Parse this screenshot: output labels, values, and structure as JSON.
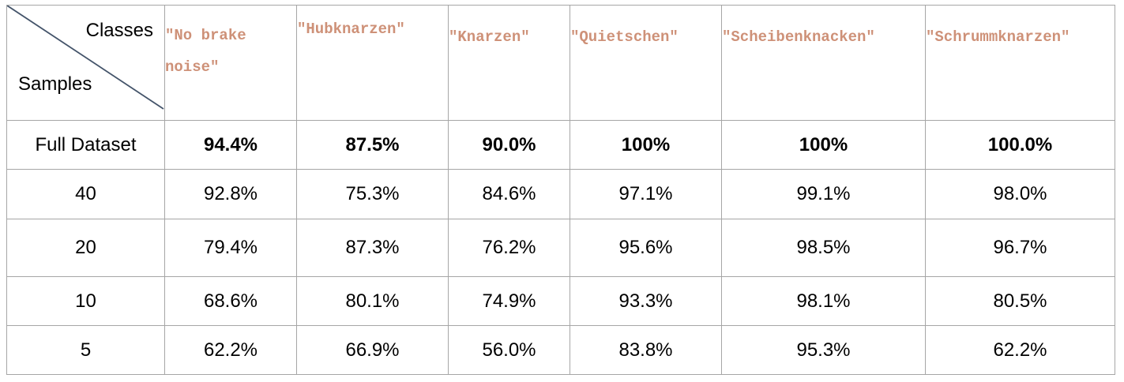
{
  "table": {
    "corner": {
      "top_label": "Classes",
      "bottom_label": "Samples"
    },
    "columns": [
      "\"No brake noise\"",
      "\"Hubknarzen\"",
      "\"Knarzen\"",
      "\"Quietschen\"",
      "\"Scheibenknacken\"",
      "\"Schrummknarzen\""
    ],
    "column_lines": [
      [
        "\"No brake",
        "noise\""
      ],
      [
        "\"Hubknarzen\""
      ],
      [
        "\"Knarzen\""
      ],
      [
        "\"Quietschen\""
      ],
      [
        "\"Scheibenknacken\""
      ],
      [
        "\"Schrummknarzen\""
      ]
    ],
    "header_color": "#ce9178",
    "rows": [
      {
        "label": "Full Dataset",
        "bold": true,
        "values": [
          "94.4%",
          "87.5%",
          "90.0%",
          "100%",
          "100%",
          "100.0%"
        ]
      },
      {
        "label": "40",
        "bold": false,
        "values": [
          "92.8%",
          "75.3%",
          "84.6%",
          "97.1%",
          "99.1%",
          "98.0%"
        ]
      },
      {
        "label": "20",
        "bold": false,
        "values": [
          "79.4%",
          "87.3%",
          "76.2%",
          "95.6%",
          "98.5%",
          "96.7%"
        ]
      },
      {
        "label": "10",
        "bold": false,
        "values": [
          "68.6%",
          "80.1%",
          "74.9%",
          "93.3%",
          "98.1%",
          "80.5%"
        ]
      },
      {
        "label": "5",
        "bold": false,
        "values": [
          "62.2%",
          "66.9%",
          "56.0%",
          "83.8%",
          "95.3%",
          "62.2%"
        ]
      }
    ]
  }
}
